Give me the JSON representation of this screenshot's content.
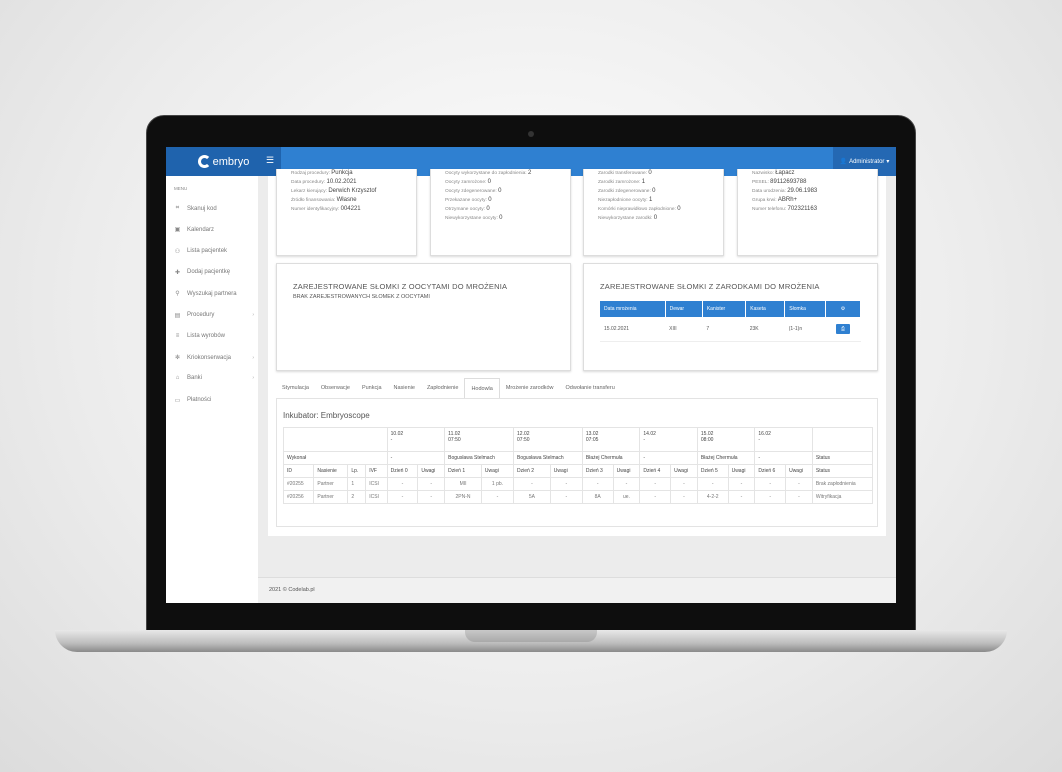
{
  "header": {
    "logo": "embryo",
    "menu_icon": "hamburger-icon",
    "user": "Administrator"
  },
  "sidebar": {
    "title": "MENU",
    "items": [
      {
        "label": "Skanuj kod",
        "icon": "barcode-icon"
      },
      {
        "label": "Kalendarz",
        "icon": "calendar-icon"
      },
      {
        "label": "Lista pacjentek",
        "icon": "users-icon"
      },
      {
        "label": "Dodaj pacjentkę",
        "icon": "user-plus-icon"
      },
      {
        "label": "Wyszukaj partnera",
        "icon": "user-search-icon"
      },
      {
        "label": "Procedury",
        "icon": "clipboard-icon",
        "arrow": "›"
      },
      {
        "label": "Lista wyrobów",
        "icon": "list-icon"
      },
      {
        "label": "Kriokonserwacja",
        "icon": "snowflake-icon",
        "arrow": "›"
      },
      {
        "label": "Banki",
        "icon": "bank-icon",
        "arrow": "›"
      },
      {
        "label": "Płatności",
        "icon": "money-icon"
      }
    ]
  },
  "cards": [
    [
      {
        "k": "Rodzaj procedury:",
        "v": "Punkcja"
      },
      {
        "k": "Data procedury:",
        "v": "10.02.2021"
      },
      {
        "k": "Lekarz kierujący:",
        "v": "Derwich Krzysztof"
      },
      {
        "k": "Źródło finansowania:",
        "v": "Własne"
      },
      {
        "k": "Numer identyfikacyjny:",
        "v": "004221"
      }
    ],
    [
      {
        "k": "Oocyty wykorzystane do zapłodnienia:",
        "v": "2"
      },
      {
        "k": "Oocyty zamrożone:",
        "v": "0"
      },
      {
        "k": "Oocyty zdegenerowane:",
        "v": "0"
      },
      {
        "k": "Przekazane oocyty:",
        "v": "0"
      },
      {
        "k": "Otrzymane oocyty:",
        "v": "0"
      },
      {
        "k": "Niewykorzystane oocyty:",
        "v": "0"
      }
    ],
    [
      {
        "k": "Zarodki transferowane:",
        "v": "0"
      },
      {
        "k": "Zarodki zamrożone:",
        "v": "1"
      },
      {
        "k": "Zarodki zdegenerowane:",
        "v": "0"
      },
      {
        "k": "Niezapłodnione oocyty:",
        "v": "1"
      },
      {
        "k": "Komórki nieprawidłowo zapłodnione:",
        "v": "0"
      },
      {
        "k": "Niewykorzystane zarodki:",
        "v": "0"
      }
    ],
    [
      {
        "k": "Nazwisko:",
        "v": "Łapacz"
      },
      {
        "k": "PESEL:",
        "v": "89112693788"
      },
      {
        "k": "Data urodzenia:",
        "v": "29.06.1983"
      },
      {
        "k": "Grupa krwi:",
        "v": "ABRh+"
      },
      {
        "k": "Numer telefonu:",
        "v": "702321163"
      }
    ]
  ],
  "oocytes": {
    "title": "ZAREJESTROWANE SŁOMKI Z OOCYTAMI DO MROŻENIA",
    "empty": "BRAK ZAREJESTROWANYCH SŁOMEK Z OOCYTAMI"
  },
  "embryos": {
    "title": "ZAREJESTROWANE SŁOMKI Z ZARODKAMI DO MROŻENIA",
    "headers": [
      "Data mrożenia",
      "Dewar",
      "Kanister",
      "Kaseta",
      "Słomka",
      "⚙"
    ],
    "row": [
      "15.02.2021",
      "XIII",
      "7",
      "23K",
      "(1-1)n"
    ],
    "print_icon": "print-icon"
  },
  "tabs": [
    "Stymulacja",
    "Obserwacje",
    "Punkcja",
    "Nasienie",
    "Zapłodnienie",
    "Hodowla",
    "Mrożenie zarodków",
    "Odwołanie transferu"
  ],
  "active_tab": "Hodowla",
  "culture": {
    "title": "Inkubator: Embryoscope",
    "dates": [
      [
        "10.02",
        "-"
      ],
      [
        "11.02",
        "07:50"
      ],
      [
        "12.02",
        "07:50"
      ],
      [
        "13.02",
        "07:05"
      ],
      [
        "14.02",
        "-"
      ],
      [
        "15.02",
        "08:00"
      ],
      [
        "16.02",
        "-"
      ]
    ],
    "performed_label": "Wykonał",
    "performed": [
      "-",
      "Bogusława Stelmach",
      "Bogusława Stelmach",
      "Błażej Chermuła",
      "-",
      "Błażej Chermuła",
      "-"
    ],
    "status_label": "Status",
    "columns": [
      "ID",
      "Nasienie",
      "Lp.",
      "IVF",
      "Dzień 0",
      "Uwagi",
      "Dzień 1",
      "Uwagi",
      "Dzień 2",
      "Uwagi",
      "Dzień 3",
      "Uwagi",
      "Dzień 4",
      "Uwagi",
      "Dzień 5",
      "Uwagi",
      "Dzień 6",
      "Uwagi",
      "Status"
    ],
    "rows": [
      [
        "#20255",
        "Partner",
        "1",
        "ICSI",
        "-",
        "-",
        "MII",
        "1 pb.",
        "-",
        "-",
        "-",
        "-",
        "-",
        "-",
        "-",
        "-",
        "-",
        "-",
        "Brak zapłodnienia"
      ],
      [
        "#20256",
        "Partner",
        "2",
        "ICSI",
        "-",
        "-",
        "2PN-N",
        "-",
        "5A",
        "-",
        "8A",
        "ue.",
        "-",
        "-",
        "4-2-2",
        "-",
        "-",
        "-",
        "Witryfikacja"
      ]
    ]
  },
  "footer": "2021 © Codelab.pl"
}
